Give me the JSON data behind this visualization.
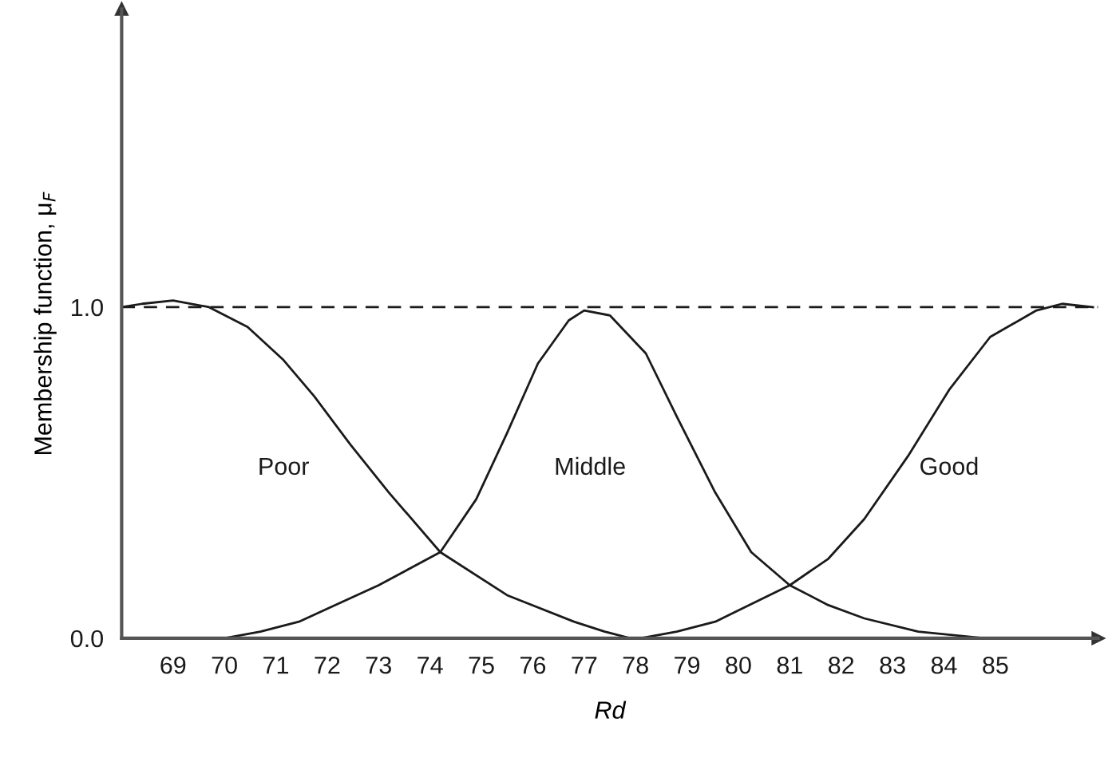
{
  "chart_data": {
    "type": "line",
    "xlabel": "Rd",
    "ylabel": "Membership function, μ$_{F}$",
    "xlim": [
      68,
      87
    ],
    "ylim": [
      0,
      1.9
    ],
    "xticks": [
      69,
      70,
      71,
      72,
      73,
      74,
      75,
      76,
      77,
      78,
      79,
      80,
      81,
      82,
      83,
      84,
      85
    ],
    "yticks": [
      {
        "value": 0,
        "label": "0.0"
      },
      {
        "value": 1,
        "label": "1.0"
      }
    ],
    "grid": false,
    "legend": false,
    "marker": "none",
    "line_style": "solid",
    "series": [
      {
        "name": "Poor",
        "color": "#1a1a1a",
        "x": [
          68,
          68.4,
          69.0,
          69.7,
          70.45,
          71.15,
          71.75,
          72.45,
          73.2,
          74.2,
          75.5,
          76.8,
          77.4,
          77.9
        ],
        "values": [
          1.0,
          1.01,
          1.02,
          1.0,
          0.94,
          0.84,
          0.73,
          0.585,
          0.44,
          0.26,
          0.13,
          0.05,
          0.02,
          0.0
        ]
      },
      {
        "name": "Middle",
        "color": "#1a1a1a",
        "x": [
          70,
          70.7,
          71.45,
          73.0,
          74.2,
          74.9,
          75.5,
          76.1,
          76.7,
          77.0,
          77.5,
          78.2,
          78.8,
          79.55,
          80.25,
          81.0,
          81.75,
          82.45,
          83.5,
          84.8
        ],
        "values": [
          0.0,
          0.02,
          0.05,
          0.16,
          0.26,
          0.42,
          0.62,
          0.83,
          0.96,
          0.99,
          0.975,
          0.86,
          0.67,
          0.44,
          0.26,
          0.16,
          0.1,
          0.06,
          0.02,
          0.0
        ]
      },
      {
        "name": "Good",
        "color": "#1a1a1a",
        "x": [
          78.1,
          78.8,
          79.55,
          81.0,
          81.75,
          82.45,
          83.3,
          84.1,
          84.9,
          85.8,
          86.3,
          86.9
        ],
        "values": [
          0.0,
          0.02,
          0.05,
          0.16,
          0.24,
          0.36,
          0.55,
          0.75,
          0.91,
          0.99,
          1.01,
          1.0
        ]
      }
    ],
    "ref_lines": [
      {
        "axis": "y",
        "value": 1.0,
        "color": "#1a1a1a",
        "line_style": "dashed"
      }
    ]
  }
}
